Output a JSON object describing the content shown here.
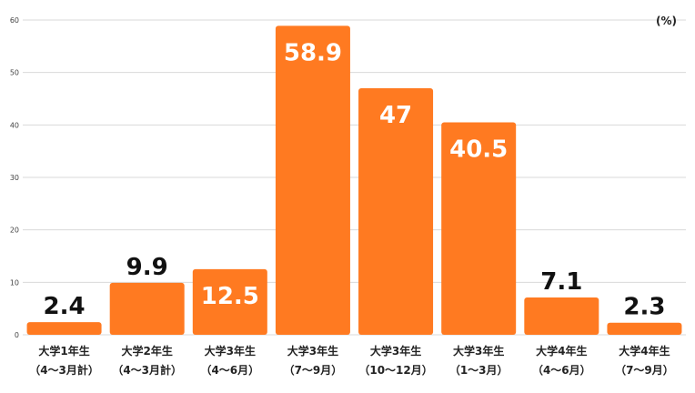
{
  "chart_data": {
    "type": "bar",
    "unit_label": "(%)",
    "categories": [
      {
        "line1": "大学1年生",
        "line2": "（4～3月計）"
      },
      {
        "line1": "大学2年生",
        "line2": "（4～3月計）"
      },
      {
        "line1": "大学3年生",
        "line2": "（4～6月）"
      },
      {
        "line1": "大学3年生",
        "line2": "（7～9月）"
      },
      {
        "line1": "大学3年生",
        "line2": "（10～12月）"
      },
      {
        "line1": "大学3年生",
        "line2": "（1～3月）"
      },
      {
        "line1": "大学4年生",
        "line2": "（4～6月）"
      },
      {
        "line1": "大学4年生",
        "line2": "（7～9月）"
      }
    ],
    "values": [
      2.4,
      9.9,
      12.5,
      58.9,
      47,
      40.5,
      7.1,
      2.3
    ],
    "value_labels": [
      "2.4",
      "9.9",
      "12.5",
      "58.9",
      "47",
      "40.5",
      "7.1",
      "2.3"
    ],
    "ylim": [
      0,
      60
    ],
    "yticks": [
      "0",
      "10",
      "20",
      "30",
      "40",
      "50",
      "60"
    ],
    "grid": true,
    "colors": {
      "bar": "#FF7A21",
      "label_inside": "#FFFFFF",
      "label_outside": "#111111",
      "grid": "#D9D9D9"
    }
  }
}
